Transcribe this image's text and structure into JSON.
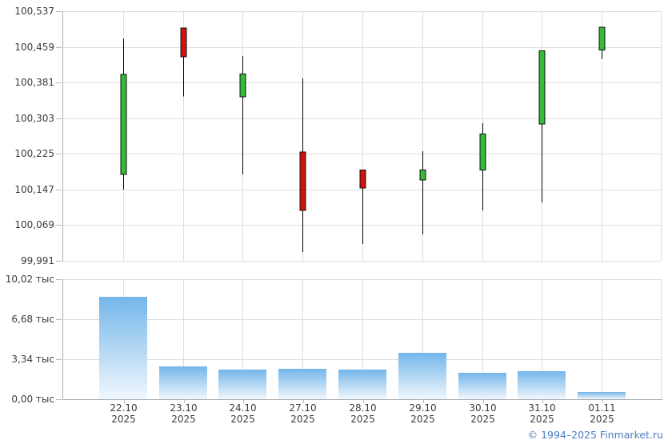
{
  "footer": {
    "copyright": "© 1994–2025 Finmarket.ru"
  },
  "colors": {
    "up": "#35bb35",
    "down": "#cf1310",
    "candle_border": "#111111",
    "wick": "#000000",
    "bar_gradient_top": "#74b6ea",
    "bar_gradient_bottom": "#f0f7fd",
    "grid": "#d9dfe4",
    "axis_line": "#a9aeb4",
    "label_text": "#3c3c3c",
    "footer_link": "#4a7cc2"
  },
  "chart_data": [
    {
      "type": "candlestick",
      "panel": "price",
      "title": "",
      "categories": [
        "22.10",
        "23.10",
        "24.10",
        "27.10",
        "28.10",
        "29.10",
        "30.10",
        "31.10",
        "01.11"
      ],
      "year_label": "2025",
      "series": [
        {
          "date": "22.10",
          "open": 100.18,
          "high": 100.477,
          "low": 100.147,
          "close": 100.399,
          "direction": "up"
        },
        {
          "date": "23.10",
          "open": 100.5,
          "high": 100.5,
          "low": 100.351,
          "close": 100.437,
          "direction": "down"
        },
        {
          "date": "24.10",
          "open": 100.35,
          "high": 100.439,
          "low": 100.18,
          "close": 100.4,
          "direction": "up"
        },
        {
          "date": "27.10",
          "open": 100.229,
          "high": 100.39,
          "low": 100.01,
          "close": 100.101,
          "direction": "down"
        },
        {
          "date": "28.10",
          "open": 100.19,
          "high": 100.19,
          "low": 100.028,
          "close": 100.15,
          "direction": "down"
        },
        {
          "date": "29.10",
          "open": 100.168,
          "high": 100.231,
          "low": 100.049,
          "close": 100.19,
          "direction": "up"
        },
        {
          "date": "30.10",
          "open": 100.19,
          "high": 100.292,
          "low": 100.101,
          "close": 100.268,
          "direction": "up"
        },
        {
          "date": "31.10",
          "open": 100.29,
          "high": 100.45,
          "low": 100.119,
          "close": 100.45,
          "direction": "up"
        },
        {
          "date": "01.11",
          "open": 100.452,
          "high": 100.502,
          "low": 100.432,
          "close": 100.502,
          "direction": "up"
        }
      ],
      "y_ticks": [
        {
          "value": 100.537,
          "label": "100,537"
        },
        {
          "value": 100.459,
          "label": "100,459"
        },
        {
          "value": 100.381,
          "label": "100,381"
        },
        {
          "value": 100.303,
          "label": "100,303"
        },
        {
          "value": 100.225,
          "label": "100,225"
        },
        {
          "value": 100.147,
          "label": "100,147"
        },
        {
          "value": 100.069,
          "label": "100,069"
        },
        {
          "value": 99.991,
          "label": "99,991"
        }
      ],
      "ylim": [
        99.991,
        100.537
      ],
      "grid": true,
      "legend": "none"
    },
    {
      "type": "bar",
      "panel": "volume",
      "title": "",
      "categories": [
        "22.10",
        "23.10",
        "24.10",
        "27.10",
        "28.10",
        "29.10",
        "30.10",
        "31.10",
        "01.11"
      ],
      "values": [
        8.56,
        2.75,
        2.48,
        2.53,
        2.48,
        3.86,
        2.2,
        2.34,
        0.6
      ],
      "unit": "тыс",
      "y_ticks": [
        {
          "value": 10.02,
          "label": "10,02 тыс"
        },
        {
          "value": 6.68,
          "label": "6,68 тыс"
        },
        {
          "value": 3.34,
          "label": "3,34 тыс"
        },
        {
          "value": 0,
          "label": "0,00 тыс"
        }
      ],
      "ylim": [
        0,
        10.02
      ],
      "grid": true,
      "legend": "none"
    }
  ]
}
